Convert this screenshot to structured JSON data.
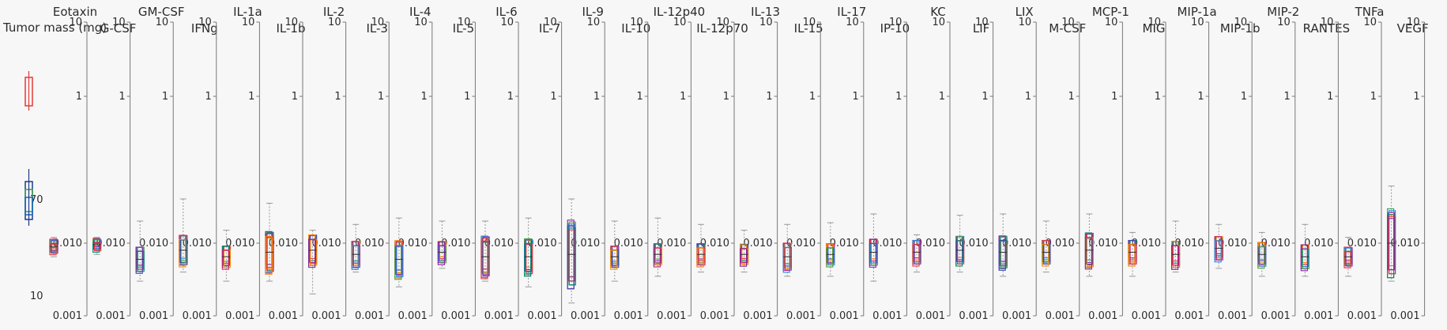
{
  "chart_data": {
    "type": "box-strip",
    "tick_labels": {
      "top": "10",
      "mid": "1",
      "low": "0.010",
      "bottom": "0.001"
    },
    "first_axis": {
      "label": "Tumor mass (mg)",
      "tick_labels": [
        "70",
        "10"
      ]
    },
    "panels": [
      {
        "name": "Eotaxin",
        "median": 0.009,
        "q1": 0.0075,
        "q3": 0.011,
        "min": 0.0065,
        "max": 0.012
      },
      {
        "name": "G-CSF",
        "median": 0.0095,
        "q1": 0.008,
        "q3": 0.011,
        "min": 0.007,
        "max": 0.012
      },
      {
        "name": "GM-CSF",
        "median": 0.006,
        "q1": 0.004,
        "q3": 0.009,
        "min": 0.003,
        "max": 0.02
      },
      {
        "name": "IFNg",
        "median": 0.008,
        "q1": 0.0055,
        "q3": 0.015,
        "min": 0.004,
        "max": 0.04
      },
      {
        "name": "IL-1a",
        "median": 0.0065,
        "q1": 0.0045,
        "q3": 0.009,
        "min": 0.003,
        "max": 0.015
      },
      {
        "name": "IL-1b",
        "median": 0.0075,
        "q1": 0.0045,
        "q3": 0.018,
        "min": 0.003,
        "max": 0.035
      },
      {
        "name": "IL-2",
        "median": 0.008,
        "q1": 0.005,
        "q3": 0.014,
        "min": 0.002,
        "max": 0.015
      },
      {
        "name": "IL-3",
        "median": 0.007,
        "q1": 0.005,
        "q3": 0.012,
        "min": 0.004,
        "max": 0.018
      },
      {
        "name": "IL-4",
        "median": 0.006,
        "q1": 0.004,
        "q3": 0.014,
        "min": 0.0025,
        "max": 0.022
      },
      {
        "name": "IL-5",
        "median": 0.0075,
        "q1": 0.0055,
        "q3": 0.011,
        "min": 0.0045,
        "max": 0.02
      },
      {
        "name": "IL-6",
        "median": 0.0065,
        "q1": 0.0045,
        "q3": 0.018,
        "min": 0.003,
        "max": 0.02
      },
      {
        "name": "IL-7",
        "median": 0.0065,
        "q1": 0.0045,
        "q3": 0.015,
        "min": 0.0025,
        "max": 0.022
      },
      {
        "name": "IL-9",
        "median": 0.007,
        "q1": 0.003,
        "q3": 0.03,
        "min": 0.0015,
        "max": 0.04
      },
      {
        "name": "IL-10",
        "median": 0.0065,
        "q1": 0.0045,
        "q3": 0.009,
        "min": 0.003,
        "max": 0.02
      },
      {
        "name": "IL-12p40",
        "median": 0.007,
        "q1": 0.005,
        "q3": 0.01,
        "min": 0.0035,
        "max": 0.022
      },
      {
        "name": "IL-12p70",
        "median": 0.007,
        "q1": 0.005,
        "q3": 0.01,
        "min": 0.004,
        "max": 0.018
      },
      {
        "name": "IL-13",
        "median": 0.007,
        "q1": 0.005,
        "q3": 0.0095,
        "min": 0.004,
        "max": 0.015
      },
      {
        "name": "IL-15",
        "median": 0.0065,
        "q1": 0.004,
        "q3": 0.01,
        "min": 0.0035,
        "max": 0.018
      },
      {
        "name": "IL-17",
        "median": 0.007,
        "q1": 0.005,
        "q3": 0.01,
        "min": 0.0035,
        "max": 0.019
      },
      {
        "name": "IP-10",
        "median": 0.0075,
        "q1": 0.005,
        "q3": 0.012,
        "min": 0.003,
        "max": 0.025
      },
      {
        "name": "KC",
        "median": 0.0075,
        "q1": 0.005,
        "q3": 0.011,
        "min": 0.004,
        "max": 0.013
      },
      {
        "name": "LIF",
        "median": 0.008,
        "q1": 0.0055,
        "q3": 0.014,
        "min": 0.004,
        "max": 0.024
      },
      {
        "name": "LIX",
        "median": 0.0075,
        "q1": 0.005,
        "q3": 0.015,
        "min": 0.0035,
        "max": 0.025
      },
      {
        "name": "M-CSF",
        "median": 0.0075,
        "q1": 0.005,
        "q3": 0.011,
        "min": 0.004,
        "max": 0.02
      },
      {
        "name": "MCP-1",
        "median": 0.008,
        "q1": 0.005,
        "q3": 0.016,
        "min": 0.0035,
        "max": 0.025
      },
      {
        "name": "MIG",
        "median": 0.0075,
        "q1": 0.005,
        "q3": 0.011,
        "min": 0.0035,
        "max": 0.014
      },
      {
        "name": "MIP-1a",
        "median": 0.007,
        "q1": 0.005,
        "q3": 0.012,
        "min": 0.004,
        "max": 0.02
      },
      {
        "name": "MIP-1b",
        "median": 0.0085,
        "q1": 0.006,
        "q3": 0.013,
        "min": 0.0045,
        "max": 0.018
      },
      {
        "name": "MIP-2",
        "median": 0.007,
        "q1": 0.005,
        "q3": 0.011,
        "min": 0.0035,
        "max": 0.014
      },
      {
        "name": "RANTES",
        "median": 0.0065,
        "q1": 0.0045,
        "q3": 0.01,
        "min": 0.0035,
        "max": 0.018
      },
      {
        "name": "TNFa",
        "median": 0.0065,
        "q1": 0.005,
        "q3": 0.009,
        "min": 0.0035,
        "max": 0.012
      },
      {
        "name": "VEGF",
        "median": 0.01,
        "q1": 0.005,
        "q3": 0.05,
        "min": 0.003,
        "max": 0.06
      }
    ]
  }
}
